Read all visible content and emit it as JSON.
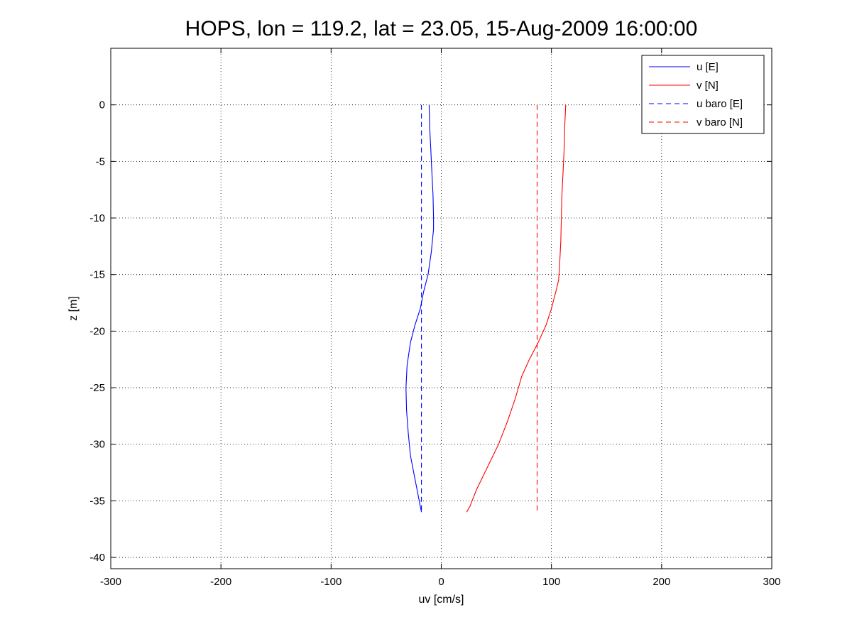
{
  "chart_data": {
    "type": "line",
    "title": "HOPS, lon = 119.2, lat = 23.05, 15-Aug-2009 16:00:00",
    "xlabel": "uv [cm/s]",
    "ylabel": "z [m]",
    "xlim": [
      -300,
      300
    ],
    "ylim": [
      -41,
      5
    ],
    "xticks": [
      -300,
      -200,
      -100,
      0,
      100,
      200,
      300
    ],
    "yticks": [
      0,
      -5,
      -10,
      -15,
      -20,
      -25,
      -30,
      -35,
      -40
    ],
    "grid": true,
    "legend_position": "top-right",
    "series": [
      {
        "name": "u [E]",
        "color": "#0000ff",
        "style": "solid",
        "points": [
          [
            -11,
            0
          ],
          [
            -10.5,
            -2
          ],
          [
            -9.5,
            -4
          ],
          [
            -8.5,
            -6
          ],
          [
            -7.5,
            -8
          ],
          [
            -7,
            -10
          ],
          [
            -7,
            -11
          ],
          [
            -9,
            -13
          ],
          [
            -12,
            -15
          ],
          [
            -16,
            -16.5
          ],
          [
            -19,
            -18
          ],
          [
            -24,
            -19.5
          ],
          [
            -28,
            -21
          ],
          [
            -31,
            -23
          ],
          [
            -32,
            -25
          ],
          [
            -31.5,
            -27
          ],
          [
            -30,
            -29
          ],
          [
            -28,
            -31
          ],
          [
            -25,
            -32.5
          ],
          [
            -22,
            -34
          ],
          [
            -19,
            -35.5
          ],
          [
            -18,
            -36
          ]
        ]
      },
      {
        "name": "v [N]",
        "color": "#ff0000",
        "style": "solid",
        "points": [
          [
            113,
            0
          ],
          [
            112,
            -2
          ],
          [
            111.5,
            -4
          ],
          [
            110.5,
            -6
          ],
          [
            109.5,
            -8
          ],
          [
            109,
            -10
          ],
          [
            108.5,
            -12
          ],
          [
            107.5,
            -14
          ],
          [
            106.5,
            -15.5
          ],
          [
            104,
            -16.5
          ],
          [
            100,
            -18
          ],
          [
            95,
            -19.5
          ],
          [
            88,
            -21
          ],
          [
            80,
            -22.5
          ],
          [
            73,
            -24
          ],
          [
            67,
            -26
          ],
          [
            60,
            -28
          ],
          [
            52,
            -30
          ],
          [
            42,
            -32
          ],
          [
            32,
            -34
          ],
          [
            26,
            -35.5
          ],
          [
            23,
            -36
          ]
        ]
      },
      {
        "name": "u baro [E]",
        "color": "#0000ff",
        "style": "dashed",
        "points": [
          [
            -18,
            0
          ],
          [
            -18,
            -36
          ]
        ]
      },
      {
        "name": "v baro [N]",
        "color": "#ff0000",
        "style": "dashed",
        "points": [
          [
            87,
            0
          ],
          [
            87,
            -36
          ]
        ]
      }
    ]
  }
}
